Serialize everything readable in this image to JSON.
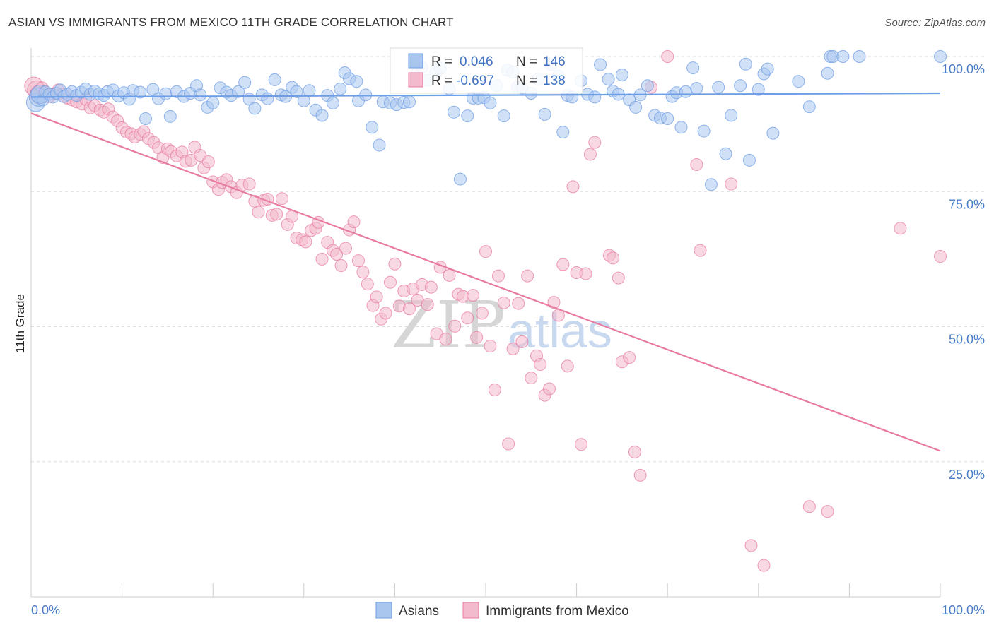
{
  "title": "ASIAN VS IMMIGRANTS FROM MEXICO 11TH GRADE CORRELATION CHART",
  "source": "Source: ZipAtlas.com",
  "watermark": {
    "zip": "ZIP",
    "atlas": "atlas"
  },
  "colors": {
    "asian": "#6d9ee6",
    "asian_fill": "#a9c6ef",
    "mexico": "#e87ba1",
    "mexico_fill": "#f3b9cc",
    "axis_text": "#4a7cc7",
    "grid": "#dddddd"
  },
  "stats": {
    "asian": {
      "r_label": "R =",
      "r": "0.046",
      "n_label": "N =",
      "n": "146"
    },
    "mexico": {
      "r_label": "R =",
      "r": "-0.697",
      "n_label": "N =",
      "n": "138"
    }
  },
  "chart_data": {
    "type": "scatter",
    "title": "ASIAN VS IMMIGRANTS FROM MEXICO 11TH GRADE CORRELATION CHART",
    "xlabel": "",
    "ylabel": "11th Grade",
    "xlim": [
      0,
      100
    ],
    "ylim": [
      0,
      103
    ],
    "x_tick_labels": [
      "0.0%",
      "100.0%"
    ],
    "y_ticks": [
      25,
      50,
      75,
      100
    ],
    "y_tick_labels": [
      "25.0%",
      "50.0%",
      "75.0%",
      "100.0%"
    ],
    "grid": "horizontal dashed",
    "legend": "bottom-center",
    "series": [
      {
        "name": "Asians",
        "trend": [
          [
            0,
            92.5
          ],
          [
            100,
            93.2
          ]
        ],
        "points": [
          [
            0.5,
            91.5
          ],
          [
            0.8,
            92.5
          ],
          [
            1,
            93
          ],
          [
            1.3,
            92
          ],
          [
            1.6,
            93.5
          ],
          [
            2,
            93
          ],
          [
            2.4,
            92.5
          ],
          [
            2.8,
            93.2
          ],
          [
            3.2,
            93.8
          ],
          [
            3.6,
            92.6
          ],
          [
            4,
            93
          ],
          [
            4.5,
            93.5
          ],
          [
            5,
            92.8
          ],
          [
            5.5,
            93.4
          ],
          [
            6,
            94
          ],
          [
            6.5,
            93
          ],
          [
            7,
            93.6
          ],
          [
            7.5,
            93.1
          ],
          [
            8,
            92.8
          ],
          [
            8.4,
            93.5
          ],
          [
            9,
            93.8
          ],
          [
            9.6,
            92.7
          ],
          [
            10.2,
            93.3
          ],
          [
            10.8,
            92.1
          ],
          [
            11.2,
            93.7
          ],
          [
            12,
            93.4
          ],
          [
            12.6,
            88.5
          ],
          [
            13.4,
            93.9
          ],
          [
            14,
            92.2
          ],
          [
            14.8,
            93.1
          ],
          [
            15.3,
            88.9
          ],
          [
            16,
            93.5
          ],
          [
            16.8,
            92.6
          ],
          [
            17.5,
            93.2
          ],
          [
            18.2,
            94.6
          ],
          [
            18.6,
            92.9
          ],
          [
            19.4,
            90.6
          ],
          [
            20,
            91.4
          ],
          [
            20.8,
            94.2
          ],
          [
            21.5,
            93.4
          ],
          [
            22,
            92.8
          ],
          [
            22.8,
            93.5
          ],
          [
            23.5,
            95.2
          ],
          [
            24,
            92.1
          ],
          [
            24.6,
            90.4
          ],
          [
            25.4,
            92.9
          ],
          [
            26,
            92.2
          ],
          [
            26.8,
            95.7
          ],
          [
            27.5,
            92.9
          ],
          [
            28,
            92.6
          ],
          [
            28.7,
            94.3
          ],
          [
            29.2,
            93.5
          ],
          [
            30,
            91.8
          ],
          [
            30.6,
            93.7
          ],
          [
            31.3,
            90.1
          ],
          [
            32,
            89.1
          ],
          [
            32.6,
            92.8
          ],
          [
            33.2,
            91.4
          ],
          [
            34,
            94
          ],
          [
            34.5,
            97
          ],
          [
            35,
            95.9
          ],
          [
            35.8,
            95.4
          ],
          [
            36,
            91.8
          ],
          [
            36.8,
            92.9
          ],
          [
            37.5,
            86.9
          ],
          [
            38.3,
            83.6
          ],
          [
            38.7,
            91.6
          ],
          [
            39.5,
            91.4
          ],
          [
            40.2,
            91.1
          ],
          [
            41,
            91.5
          ],
          [
            41.6,
            91.6
          ],
          [
            42.4,
            96.9
          ],
          [
            43,
            98
          ],
          [
            43.6,
            95.6
          ],
          [
            44.5,
            97.1
          ],
          [
            45,
            97.8
          ],
          [
            46,
            94
          ],
          [
            46.5,
            89.7
          ],
          [
            47.2,
            77.3
          ],
          [
            48,
            89
          ],
          [
            48.6,
            92.3
          ],
          [
            49.2,
            92.3
          ],
          [
            49.8,
            92.4
          ],
          [
            50.5,
            91.4
          ],
          [
            51.2,
            94.6
          ],
          [
            52,
            89
          ],
          [
            52.4,
            97.5
          ],
          [
            53,
            97.1
          ],
          [
            53.5,
            94.3
          ],
          [
            54,
            94.2
          ],
          [
            55,
            93.2
          ],
          [
            55.8,
            95.8
          ],
          [
            56.5,
            89.3
          ],
          [
            57.2,
            98.5
          ],
          [
            58,
            96.4
          ],
          [
            58.5,
            86
          ],
          [
            59,
            92.8
          ],
          [
            59.5,
            92.5
          ],
          [
            60.5,
            95.5
          ],
          [
            61.2,
            93
          ],
          [
            62,
            92.5
          ],
          [
            62.6,
            98.5
          ],
          [
            63.5,
            95.8
          ],
          [
            64,
            93.6
          ],
          [
            64.6,
            93
          ],
          [
            65,
            96.6
          ],
          [
            65.8,
            92
          ],
          [
            66.5,
            90.6
          ],
          [
            67,
            92.9
          ],
          [
            67.8,
            94.6
          ],
          [
            68.6,
            89.1
          ],
          [
            69.2,
            88.6
          ],
          [
            70,
            88.5
          ],
          [
            70.5,
            92.6
          ],
          [
            71,
            93.3
          ],
          [
            71.5,
            86.9
          ],
          [
            72,
            93.5
          ],
          [
            72.8,
            97.9
          ],
          [
            73.2,
            94.1
          ],
          [
            74,
            86.2
          ],
          [
            74.8,
            76.3
          ],
          [
            75.6,
            94.3
          ],
          [
            76.4,
            82
          ],
          [
            77,
            89.1
          ],
          [
            78,
            94.6
          ],
          [
            78.6,
            98.6
          ],
          [
            79,
            80.8
          ],
          [
            80,
            93.9
          ],
          [
            80.6,
            96.8
          ],
          [
            81,
            97.7
          ],
          [
            81.6,
            85.8
          ],
          [
            84.4,
            95.4
          ],
          [
            85.6,
            90.7
          ],
          [
            87.6,
            96.9
          ],
          [
            87.9,
            100
          ],
          [
            88.2,
            100
          ],
          [
            89.3,
            100
          ],
          [
            91.1,
            100
          ],
          [
            100,
            100
          ]
        ]
      },
      {
        "name": "Immigrants from Mexico",
        "trend": [
          [
            0,
            89.5
          ],
          [
            100,
            27
          ]
        ],
        "points": [
          [
            0.3,
            94.5
          ],
          [
            0.6,
            93.8
          ],
          [
            0.9,
            93
          ],
          [
            1.2,
            94.2
          ],
          [
            1.5,
            93.4
          ],
          [
            2,
            92.6
          ],
          [
            2.5,
            93.1
          ],
          [
            3,
            93.8
          ],
          [
            3.5,
            93
          ],
          [
            4,
            92.3
          ],
          [
            4.5,
            92
          ],
          [
            5,
            91.6
          ],
          [
            5.6,
            91.2
          ],
          [
            6,
            92.1
          ],
          [
            6.5,
            90.5
          ],
          [
            7,
            90.9
          ],
          [
            7.6,
            90.1
          ],
          [
            8,
            89.7
          ],
          [
            8.5,
            90.3
          ],
          [
            9,
            88.8
          ],
          [
            9.5,
            88.1
          ],
          [
            10,
            86.8
          ],
          [
            10.5,
            86
          ],
          [
            11,
            85.7
          ],
          [
            11.4,
            85.1
          ],
          [
            12,
            85.6
          ],
          [
            12.4,
            86.1
          ],
          [
            12.9,
            84.8
          ],
          [
            13.5,
            84.1
          ],
          [
            14,
            83.1
          ],
          [
            14.5,
            81.3
          ],
          [
            15,
            82.9
          ],
          [
            15.4,
            82.4
          ],
          [
            16,
            81.6
          ],
          [
            16.6,
            82.3
          ],
          [
            17,
            80.6
          ],
          [
            17.6,
            80.8
          ],
          [
            18,
            83.2
          ],
          [
            18.6,
            81.7
          ],
          [
            19,
            79.4
          ],
          [
            19.5,
            80.5
          ],
          [
            20,
            76.8
          ],
          [
            20.6,
            75.4
          ],
          [
            21,
            76.7
          ],
          [
            21.5,
            77.2
          ],
          [
            22,
            75.9
          ],
          [
            22.6,
            74.8
          ],
          [
            23.2,
            76.2
          ],
          [
            24,
            76.4
          ],
          [
            24.6,
            73.2
          ],
          [
            25,
            71.2
          ],
          [
            25.6,
            73.4
          ],
          [
            26,
            73.6
          ],
          [
            26.5,
            70.6
          ],
          [
            27,
            70.8
          ],
          [
            27.6,
            73.7
          ],
          [
            28.2,
            68.9
          ],
          [
            28.7,
            70.4
          ],
          [
            29.2,
            66.4
          ],
          [
            29.8,
            66.1
          ],
          [
            30.2,
            65.7
          ],
          [
            30.8,
            67.8
          ],
          [
            31.3,
            68.2
          ],
          [
            31.6,
            69.3
          ],
          [
            32,
            62.5
          ],
          [
            32.6,
            65.6
          ],
          [
            33.2,
            64.1
          ],
          [
            33.6,
            63.4
          ],
          [
            34.1,
            61.3
          ],
          [
            34.6,
            64.5
          ],
          [
            35,
            67.9
          ],
          [
            35.5,
            69.4
          ],
          [
            36,
            62.2
          ],
          [
            36.5,
            60.1
          ],
          [
            37,
            57.9
          ],
          [
            37.6,
            53.9
          ],
          [
            38,
            55.5
          ],
          [
            38.5,
            51.4
          ],
          [
            39,
            52.5
          ],
          [
            39.5,
            58.2
          ],
          [
            40,
            61.6
          ],
          [
            40.5,
            53.8
          ],
          [
            41,
            56.6
          ],
          [
            41.6,
            53.3
          ],
          [
            42,
            57
          ],
          [
            42.5,
            54.9
          ],
          [
            43,
            57.8
          ],
          [
            43.6,
            54.1
          ],
          [
            44,
            57.3
          ],
          [
            44.6,
            48.7
          ],
          [
            45,
            61
          ],
          [
            45.6,
            47.7
          ],
          [
            46,
            59.5
          ],
          [
            46.6,
            50.1
          ],
          [
            47,
            56
          ],
          [
            47.5,
            55.6
          ],
          [
            48,
            51.6
          ],
          [
            48.6,
            55.8
          ],
          [
            49,
            48
          ],
          [
            49.6,
            52.5
          ],
          [
            50,
            63.9
          ],
          [
            50.5,
            46.4
          ],
          [
            51,
            38.3
          ],
          [
            51.4,
            59.4
          ],
          [
            52,
            54.4
          ],
          [
            52.5,
            28.3
          ],
          [
            53,
            45.9
          ],
          [
            53.6,
            54.3
          ],
          [
            54,
            47.2
          ],
          [
            54.6,
            59.4
          ],
          [
            55,
            40.5
          ],
          [
            55.6,
            44.6
          ],
          [
            56,
            43
          ],
          [
            56.5,
            37.3
          ],
          [
            57,
            38.5
          ],
          [
            57.5,
            54.5
          ],
          [
            58,
            52.1
          ],
          [
            58.5,
            61.5
          ],
          [
            59,
            42.7
          ],
          [
            59.6,
            75.9
          ],
          [
            60,
            60
          ],
          [
            60.5,
            28.2
          ],
          [
            61,
            59.8
          ],
          [
            61.5,
            81.9
          ],
          [
            62,
            84.1
          ],
          [
            63.6,
            63.2
          ],
          [
            64,
            62.7
          ],
          [
            64.6,
            59
          ],
          [
            65,
            43.5
          ],
          [
            65.8,
            44.3
          ],
          [
            66.4,
            26.8
          ],
          [
            67,
            22.5
          ],
          [
            68.2,
            94.3
          ],
          [
            70,
            100
          ],
          [
            73.2,
            80
          ],
          [
            73.6,
            64.1
          ],
          [
            77,
            76.4
          ],
          [
            79.2,
            9.5
          ],
          [
            80.6,
            5.8
          ],
          [
            85.6,
            16.7
          ],
          [
            87.6,
            15.8
          ],
          [
            95.6,
            68.2
          ],
          [
            100,
            63
          ]
        ]
      }
    ]
  },
  "legend": {
    "asian": "Asians",
    "mexico": "Immigrants from Mexico"
  }
}
